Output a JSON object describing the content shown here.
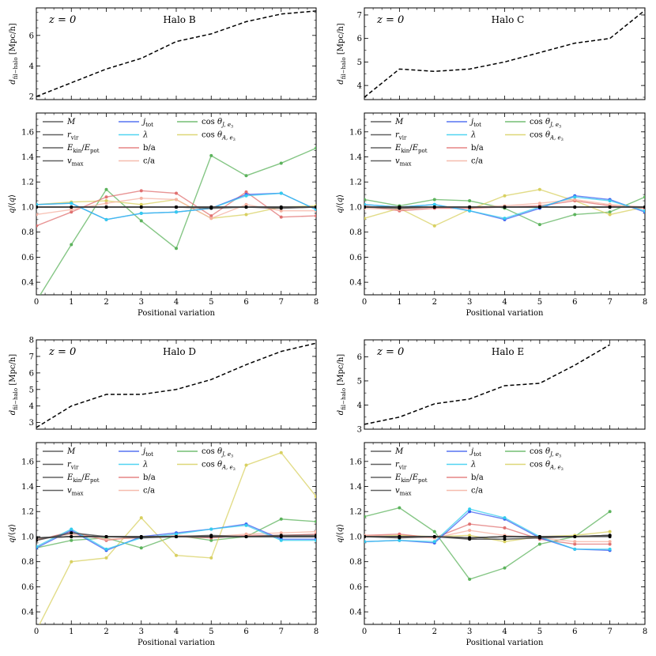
{
  "chart_data": [
    {
      "type": "line",
      "halo": "Halo B",
      "redshift_label": "z=0",
      "top": {
        "ylabel": "d_fil-halo [Mpc/h]",
        "ylim": [
          1.8,
          7.8
        ],
        "yticks": [
          2,
          4,
          6
        ],
        "x": [
          0,
          1,
          2,
          3,
          4,
          5,
          6,
          7,
          8
        ],
        "values": [
          2.0,
          2.9,
          3.8,
          4.5,
          5.6,
          6.1,
          6.9,
          7.4,
          7.6
        ]
      },
      "bottom": {
        "xlabel": "Positional variation",
        "ylabel": "q/<q>",
        "xlim": [
          0,
          8
        ],
        "ylim": [
          0.3,
          1.75
        ],
        "xticks": [
          0,
          1,
          2,
          3,
          4,
          5,
          6,
          7,
          8
        ],
        "yticks": [
          0.4,
          0.6,
          0.8,
          1.0,
          1.2,
          1.4,
          1.6
        ],
        "series": [
          {
            "name": "M",
            "color": "#444444",
            "values": [
              1.0,
              1.0,
              1.0,
              1.0,
              1.0,
              1.0,
              1.0,
              1.0,
              1.0
            ]
          },
          {
            "name": "r_vir",
            "color": "#444444",
            "values": [
              1.0,
              1.0,
              1.0,
              1.0,
              1.0,
              1.0,
              1.0,
              1.0,
              1.0
            ]
          },
          {
            "name": "E_kin/E_pot",
            "color": "#444444",
            "values": [
              1.0,
              1.0,
              1.0,
              1.0,
              1.0,
              0.99,
              1.0,
              0.99,
              1.0
            ]
          },
          {
            "name": "v_max",
            "color": "#444444",
            "values": [
              1.0,
              1.0,
              1.0,
              1.0,
              1.0,
              1.0,
              1.0,
              1.0,
              1.0
            ]
          },
          {
            "name": "j_tot",
            "color": "#3a5cf0",
            "values": [
              1.02,
              1.03,
              0.9,
              0.95,
              0.96,
              0.99,
              1.1,
              1.11,
              0.98
            ]
          },
          {
            "name": "λ",
            "color": "#33ccee",
            "values": [
              1.02,
              1.03,
              0.9,
              0.95,
              0.96,
              0.99,
              1.09,
              1.11,
              0.98
            ]
          },
          {
            "name": "b/a",
            "color": "#e07070",
            "values": [
              0.85,
              0.96,
              1.08,
              1.13,
              1.11,
              0.93,
              1.12,
              0.92,
              0.93
            ]
          },
          {
            "name": "c/a",
            "color": "#f5b0a0",
            "values": [
              0.94,
              0.98,
              1.03,
              1.07,
              1.06,
              0.91,
              1.02,
              0.97,
              0.97
            ]
          },
          {
            "name": "cos θ_J,e3",
            "color": "#5cb35c",
            "values": [
              0.25,
              0.7,
              1.14,
              0.89,
              0.67,
              1.41,
              1.25,
              1.35,
              1.47
            ]
          },
          {
            "name": "cos θ_A,e3",
            "color": "#d8d060",
            "values": [
              1.02,
              1.04,
              1.05,
              1.02,
              1.06,
              0.91,
              0.94,
              1.0,
              1.01
            ]
          }
        ]
      }
    },
    {
      "type": "line",
      "halo": "Halo C",
      "redshift_label": "z=0",
      "top": {
        "ylabel": "d_fil-halo [Mpc/h]",
        "ylim": [
          3.4,
          7.3
        ],
        "yticks": [
          4,
          5,
          6,
          7
        ],
        "x": [
          0,
          1,
          2,
          3,
          4,
          5,
          6,
          7,
          8
        ],
        "values": [
          3.5,
          4.7,
          4.6,
          4.7,
          5.0,
          5.4,
          5.8,
          6.0,
          7.2
        ]
      },
      "bottom": {
        "xlabel": "Positional variation",
        "ylabel": "q/<q>",
        "xlim": [
          0,
          8
        ],
        "ylim": [
          0.3,
          1.75
        ],
        "xticks": [
          0,
          1,
          2,
          3,
          4,
          5,
          6,
          7,
          8
        ],
        "yticks": [
          0.4,
          0.6,
          0.8,
          1.0,
          1.2,
          1.4,
          1.6
        ],
        "series": [
          {
            "name": "M",
            "color": "#444444",
            "values": [
              1.0,
              1.0,
              1.0,
              1.0,
              1.0,
              1.0,
              1.0,
              1.0,
              1.0
            ]
          },
          {
            "name": "r_vir",
            "color": "#444444",
            "values": [
              1.0,
              1.0,
              1.0,
              1.0,
              1.0,
              1.0,
              1.0,
              1.0,
              1.0
            ]
          },
          {
            "name": "E_kin/E_pot",
            "color": "#444444",
            "values": [
              1.0,
              0.99,
              1.0,
              1.0,
              1.0,
              1.0,
              1.0,
              1.0,
              1.0
            ]
          },
          {
            "name": "v_max",
            "color": "#444444",
            "values": [
              1.0,
              1.0,
              1.0,
              1.0,
              1.0,
              1.0,
              1.0,
              1.0,
              1.0
            ]
          },
          {
            "name": "j_tot",
            "color": "#3a5cf0",
            "values": [
              1.02,
              1.0,
              1.02,
              0.97,
              0.9,
              0.99,
              1.09,
              1.06,
              0.96
            ]
          },
          {
            "name": "λ",
            "color": "#33ccee",
            "values": [
              1.02,
              1.0,
              1.02,
              0.97,
              0.91,
              1.0,
              1.08,
              1.05,
              0.97
            ]
          },
          {
            "name": "b/a",
            "color": "#e07070",
            "values": [
              1.01,
              0.97,
              0.99,
              0.99,
              1.0,
              1.01,
              1.05,
              1.01,
              0.99
            ]
          },
          {
            "name": "c/a",
            "color": "#f5b0a0",
            "values": [
              0.99,
              0.98,
              1.0,
              1.0,
              1.01,
              1.03,
              1.06,
              1.02,
              1.0
            ]
          },
          {
            "name": "cos θ_J,e3",
            "color": "#5cb35c",
            "values": [
              1.06,
              1.01,
              1.06,
              1.05,
              0.99,
              0.86,
              0.94,
              0.96,
              1.08
            ]
          },
          {
            "name": "cos θ_A,e3",
            "color": "#d8d060",
            "values": [
              0.91,
              0.99,
              0.85,
              0.98,
              1.09,
              1.14,
              1.05,
              0.94,
              1.0
            ]
          }
        ]
      }
    },
    {
      "type": "line",
      "halo": "Halo D",
      "redshift_label": "z=0",
      "top": {
        "ylabel": "d_fil-halo [Mpc/h]",
        "ylim": [
          2.6,
          8.0
        ],
        "yticks": [
          3,
          4,
          5,
          6,
          7,
          8
        ],
        "x": [
          0,
          1,
          2,
          3,
          4,
          5,
          6,
          7,
          8
        ],
        "values": [
          2.7,
          4.0,
          4.7,
          4.7,
          5.0,
          5.6,
          6.5,
          7.3,
          7.8
        ]
      },
      "bottom": {
        "xlabel": "Positional variation",
        "ylabel": "q/<q>",
        "xlim": [
          0,
          8
        ],
        "ylim": [
          0.3,
          1.75
        ],
        "xticks": [
          0,
          1,
          2,
          3,
          4,
          5,
          6,
          7,
          8
        ],
        "yticks": [
          0.4,
          0.6,
          0.8,
          1.0,
          1.2,
          1.4,
          1.6
        ],
        "series": [
          {
            "name": "M",
            "color": "#444444",
            "values": [
              0.99,
              1.0,
              1.0,
              1.0,
              1.0,
              1.0,
              1.0,
              1.0,
              1.0
            ]
          },
          {
            "name": "r_vir",
            "color": "#444444",
            "values": [
              0.99,
              1.0,
              1.0,
              1.0,
              1.0,
              1.0,
              1.0,
              1.0,
              1.0
            ]
          },
          {
            "name": "E_kin/E_pot",
            "color": "#444444",
            "values": [
              0.97,
              1.03,
              1.0,
              0.99,
              1.0,
              1.01,
              1.0,
              1.01,
              1.01
            ]
          },
          {
            "name": "v_max",
            "color": "#444444",
            "values": [
              0.99,
              1.0,
              1.0,
              1.0,
              1.0,
              1.0,
              1.0,
              1.0,
              1.0
            ]
          },
          {
            "name": "j_tot",
            "color": "#3a5cf0",
            "values": [
              0.91,
              1.05,
              0.89,
              1.0,
              1.03,
              1.06,
              1.1,
              0.98,
              0.98
            ]
          },
          {
            "name": "λ",
            "color": "#33ccee",
            "values": [
              0.92,
              1.06,
              0.9,
              0.99,
              1.02,
              1.06,
              1.09,
              0.97,
              0.97
            ]
          },
          {
            "name": "b/a",
            "color": "#e07070",
            "values": [
              0.97,
              1.04,
              0.97,
              1.0,
              1.0,
              0.99,
              1.01,
              1.01,
              1.02
            ]
          },
          {
            "name": "c/a",
            "color": "#f5b0a0",
            "values": [
              0.98,
              1.02,
              0.98,
              0.99,
              1.01,
              1.0,
              1.02,
              1.03,
              1.04
            ]
          },
          {
            "name": "cos θ_J,e3",
            "color": "#5cb35c",
            "values": [
              0.91,
              0.97,
              0.99,
              0.91,
              1.01,
              0.97,
              1.0,
              1.14,
              1.12
            ]
          },
          {
            "name": "cos θ_A,e3",
            "color": "#d8d060",
            "values": [
              0.25,
              0.8,
              0.83,
              1.15,
              0.85,
              0.83,
              1.57,
              1.67,
              1.32
            ]
          }
        ]
      }
    },
    {
      "type": "line",
      "halo": "Halo E",
      "redshift_label": "z=0",
      "top": {
        "ylabel": "d_fil-halo [Mpc/h]",
        "ylim": [
          3.0,
          6.7
        ],
        "yticks": [
          3,
          4,
          5,
          6
        ],
        "x": [
          0,
          1,
          2,
          3,
          4,
          5,
          6,
          7
        ],
        "values": [
          3.2,
          3.5,
          4.05,
          4.25,
          4.8,
          4.9,
          5.65,
          6.5
        ]
      },
      "bottom": {
        "xlabel": "Positional variation",
        "ylabel": "q/<q>",
        "xlim": [
          0,
          8
        ],
        "ylim": [
          0.3,
          1.75
        ],
        "xticks": [
          0,
          1,
          2,
          3,
          4,
          5,
          6,
          7,
          8
        ],
        "yticks": [
          0.4,
          0.6,
          0.8,
          1.0,
          1.2,
          1.4,
          1.6
        ],
        "series": [
          {
            "name": "M",
            "color": "#444444",
            "values": [
              1.0,
              1.0,
              1.0,
              0.99,
              1.0,
              1.0,
              1.0,
              1.01
            ]
          },
          {
            "name": "r_vir",
            "color": "#444444",
            "values": [
              1.0,
              1.0,
              1.0,
              0.99,
              1.0,
              1.0,
              1.0,
              1.01
            ]
          },
          {
            "name": "E_kin/E_pot",
            "color": "#444444",
            "values": [
              1.0,
              0.99,
              1.0,
              0.98,
              0.98,
              0.99,
              1.0,
              1.01
            ]
          },
          {
            "name": "v_max",
            "color": "#444444",
            "values": [
              1.0,
              1.0,
              1.0,
              0.99,
              1.0,
              1.0,
              1.0,
              1.0
            ]
          },
          {
            "name": "j_tot",
            "color": "#3a5cf0",
            "values": [
              0.96,
              0.97,
              0.95,
              1.2,
              1.14,
              0.99,
              0.9,
              0.89
            ]
          },
          {
            "name": "λ",
            "color": "#33ccee",
            "values": [
              0.96,
              0.97,
              0.96,
              1.22,
              1.15,
              1.0,
              0.9,
              0.9
            ]
          },
          {
            "name": "b/a",
            "color": "#e07070",
            "values": [
              1.01,
              1.02,
              0.99,
              1.1,
              1.07,
              0.98,
              0.94,
              0.94
            ]
          },
          {
            "name": "c/a",
            "color": "#f5b0a0",
            "values": [
              1.01,
              1.0,
              0.99,
              1.05,
              1.01,
              0.99,
              0.96,
              0.96
            ]
          },
          {
            "name": "cos θ_J,e3",
            "color": "#5cb35c",
            "values": [
              1.16,
              1.23,
              1.04,
              0.66,
              0.75,
              0.94,
              1.0,
              1.2
            ]
          },
          {
            "name": "cos θ_A,e3",
            "color": "#d8d060",
            "values": [
              1.0,
              1.01,
              1.0,
              1.01,
              0.96,
              1.0,
              1.01,
              1.04
            ]
          }
        ]
      }
    }
  ],
  "legend": {
    "col1": [
      "M",
      "r_vir",
      "E_kin/E_pot",
      "v_max"
    ],
    "col2": [
      "j_tot",
      "λ",
      "b/a",
      "c/a"
    ],
    "col3": [
      "cos θ_J,e3",
      "cos θ_A,e3"
    ]
  }
}
